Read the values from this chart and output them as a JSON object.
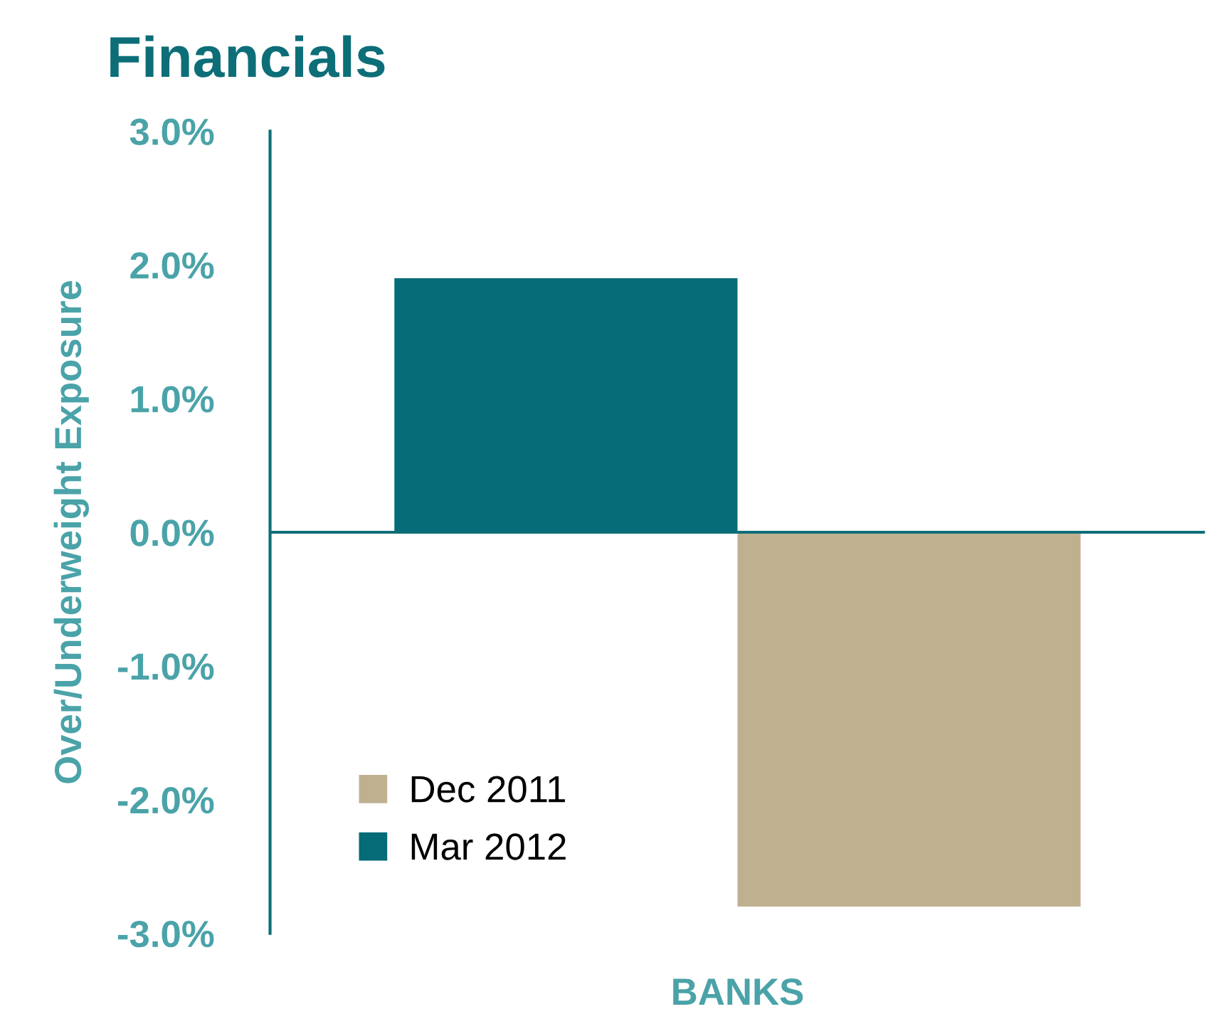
{
  "chart_data": {
    "type": "bar",
    "title": "Financials",
    "ylabel": "Over/Underweight Exposure",
    "categories": [
      "BANKS"
    ],
    "series": [
      {
        "name": "Mar 2012",
        "color": "#056b77",
        "values": [
          1.9
        ]
      },
      {
        "name": "Dec 2011",
        "color": "#bfb190",
        "values": [
          -2.8
        ]
      }
    ],
    "ylim": [
      -3,
      3
    ],
    "yticks": [
      {
        "value": -3,
        "label": "-3.0%"
      },
      {
        "value": -2,
        "label": "-2.0%"
      },
      {
        "value": -1,
        "label": "-1.0%"
      },
      {
        "value": 0,
        "label": "0.0%"
      },
      {
        "value": 1,
        "label": "1.0%"
      },
      {
        "value": 2,
        "label": "2.0%"
      },
      {
        "value": 3,
        "label": "3.0%"
      }
    ],
    "ref_lines": [
      {
        "axis": "y",
        "value": 0,
        "color": "#0d6e78"
      }
    ],
    "grid": false,
    "legend": "bottom left"
  }
}
